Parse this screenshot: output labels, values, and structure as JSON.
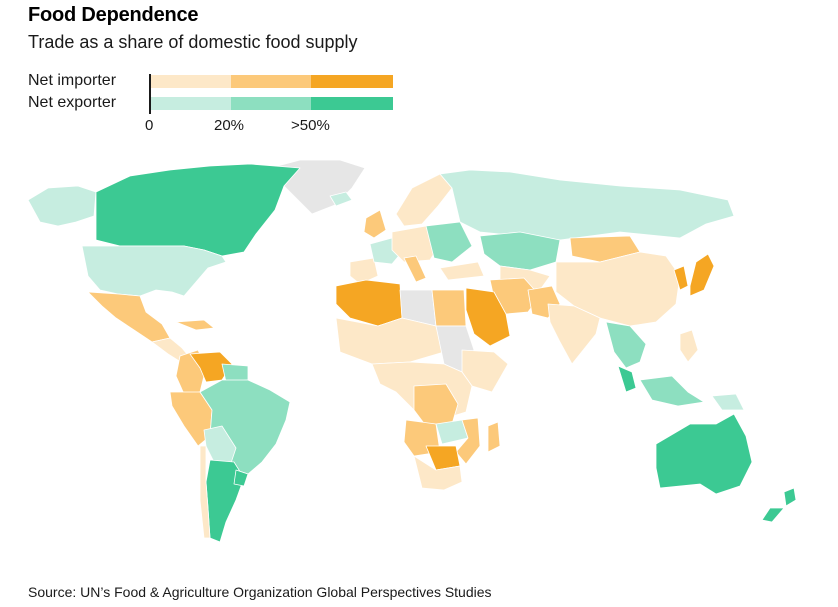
{
  "header": {
    "title": "Food Dependence",
    "subtitle": "Trade as a share of domestic food supply"
  },
  "legend": {
    "importer_label": "Net importer",
    "exporter_label": "Net exporter",
    "ticks": [
      "0",
      "20%",
      ">50%"
    ],
    "importer_colors": [
      "#fde8c8",
      "#fcc97a",
      "#f5a623"
    ],
    "exporter_colors": [
      "#c6ede0",
      "#8ddfc0",
      "#3cc993"
    ]
  },
  "colors": {
    "no_data": "#e6e6e6",
    "border": "#ffffff"
  },
  "footer": {
    "source": "Source: UN’s Food & Agriculture Organization Global Perspectives Studies"
  }
}
